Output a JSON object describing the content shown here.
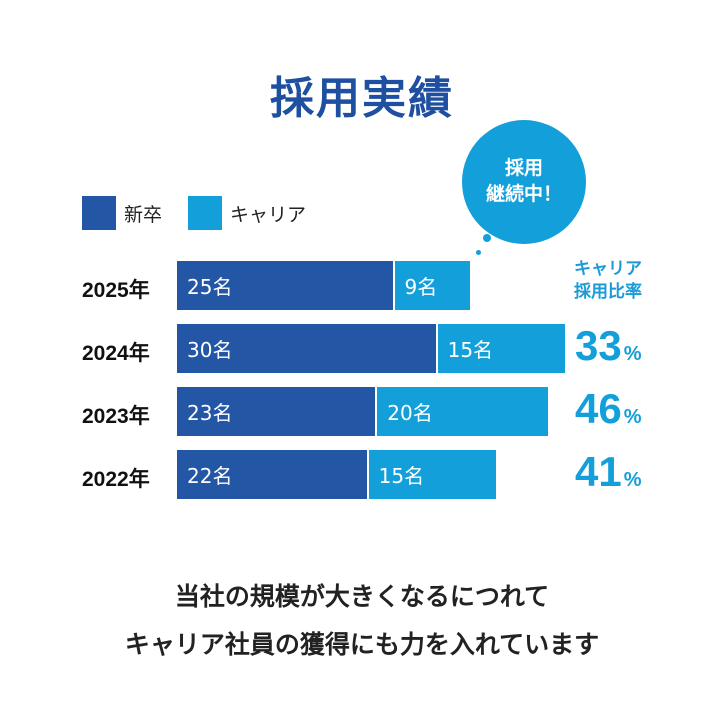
{
  "title": "採用実績",
  "legend": {
    "new_grad": "新卒",
    "career": "キャリア"
  },
  "bubble": {
    "line1": "採用",
    "line2": "継続中！"
  },
  "ratio_header": {
    "line1": "キャリア",
    "line2": "採用比率"
  },
  "footer": {
    "line1": "当社の規模が大きくなるにつれて",
    "line2": "キャリア社員の獲得にも力を入れています"
  },
  "colors": {
    "new_grad": "#2456a6",
    "career": "#139fd9",
    "title": "#1f4fa0"
  },
  "chart_data": {
    "type": "bar",
    "orientation": "horizontal",
    "stacked": true,
    "categories": [
      "2025年",
      "2024年",
      "2023年",
      "2022年"
    ],
    "series": [
      {
        "name": "新卒",
        "values": [
          25,
          30,
          23,
          22
        ],
        "labels": [
          "25名",
          "30名",
          "23名",
          "22名"
        ]
      },
      {
        "name": "キャリア",
        "values": [
          9,
          15,
          20,
          15
        ],
        "labels": [
          "9名",
          "15名",
          "20名",
          "15名"
        ]
      }
    ],
    "career_ratio": [
      "",
      "33",
      "46",
      "41"
    ],
    "percent_sign": "%"
  }
}
